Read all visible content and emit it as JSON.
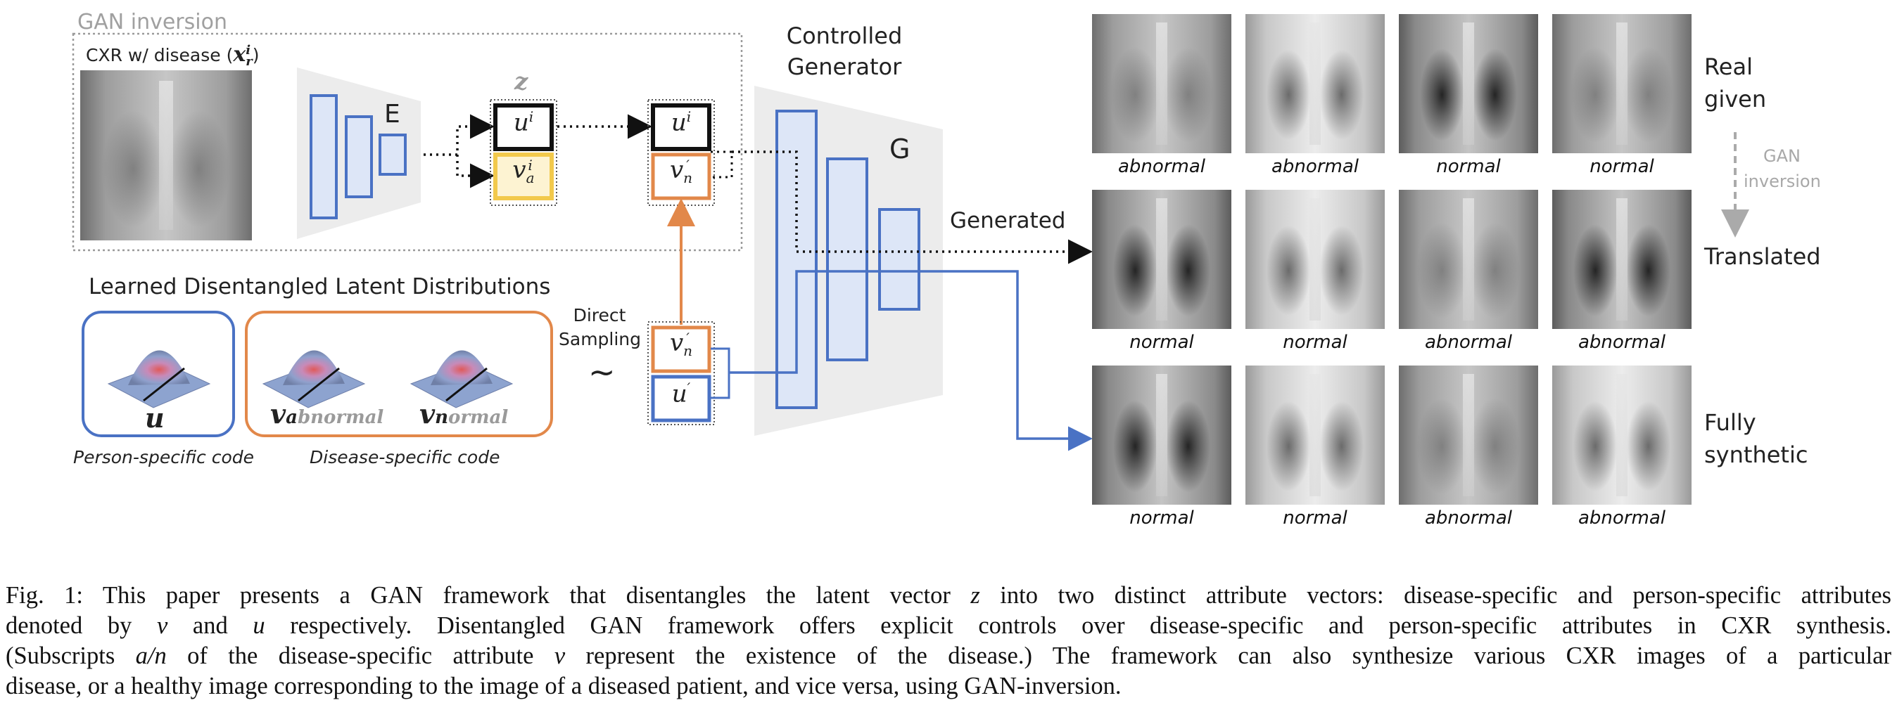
{
  "figure": {
    "gan_inversion_label": "GAN inversion",
    "input_label": "CXR w/ disease (",
    "input_symbol": "x",
    "input_sup": "i",
    "input_sub": "r",
    "input_label_close": ")",
    "encoder_label": "E",
    "z_label": "z",
    "u_i": "u",
    "u_i_sup": "i",
    "v_a_i": "v",
    "v_a_i_sub": "a",
    "v_a_i_sup": "i",
    "u_i_out": "u",
    "u_i_out_sup": "i",
    "v_n_prime": "v",
    "v_n_prime_sub": "n",
    "prime": "′",
    "generator_title_1": "Controlled",
    "generator_title_2": "Generator",
    "generator_label": "G",
    "generated_label": "Generated",
    "latent_dist_title": "Learned Disentangled Latent Distributions",
    "u_symbol": "u",
    "v_abnormal_symbol": "v",
    "v_abnormal_sub_bold": "a",
    "v_abnormal_sub_rest": "bnormal",
    "v_normal_symbol": "v",
    "v_normal_sub_bold": "n",
    "v_normal_sub_rest": "ormal",
    "person_code_label": "Person-specific code",
    "disease_code_label": "Disease-specific code",
    "direct_sampling_1": "Direct",
    "direct_sampling_2": "Sampling",
    "tilde": "~",
    "u_prime": "u",
    "row_labels": {
      "real_1": "Real",
      "real_2": "given",
      "gan_inv_1": "GAN",
      "gan_inv_2": "inversion",
      "translated": "Translated",
      "synthetic_1": "Fully",
      "synthetic_2": "synthetic"
    },
    "rows": [
      [
        "abnormal",
        "abnormal",
        "normal",
        "normal"
      ],
      [
        "normal",
        "normal",
        "abnormal",
        "abnormal"
      ],
      [
        "normal",
        "normal",
        "abnormal",
        "abnormal"
      ]
    ],
    "colors": {
      "blue": "#4a72c4",
      "orange": "#e2884a",
      "yellow": "#f2c94c",
      "gray": "#aaaaaa",
      "light_blue_fill": "#dde6f7"
    }
  },
  "caption": {
    "l1_a": "Fig. 1: This paper presents a GAN framework that disentangles the latent vector ",
    "l1_z": "z",
    "l1_b": " into two distinct attribute vectors: disease-specific and person-specific attributes",
    "l2_a": "denoted by ",
    "l2_v": "v",
    "l2_b": " and ",
    "l2_u": "u",
    "l2_c": " respectively.  Disentangled GAN framework offers explicit controls over disease-specific and person-specific attributes in CXR synthesis.",
    "l3_a": "(Subscripts ",
    "l3_an": "a/n",
    "l3_b": " of the disease-specific attribute ",
    "l3_v": "v",
    "l3_c": " represent the existence of the disease.)  The framework can also synthesize various CXR images of a particular",
    "l4": "disease, or a healthy image corresponding to the image of a diseased patient, and vice versa, using GAN-inversion."
  }
}
